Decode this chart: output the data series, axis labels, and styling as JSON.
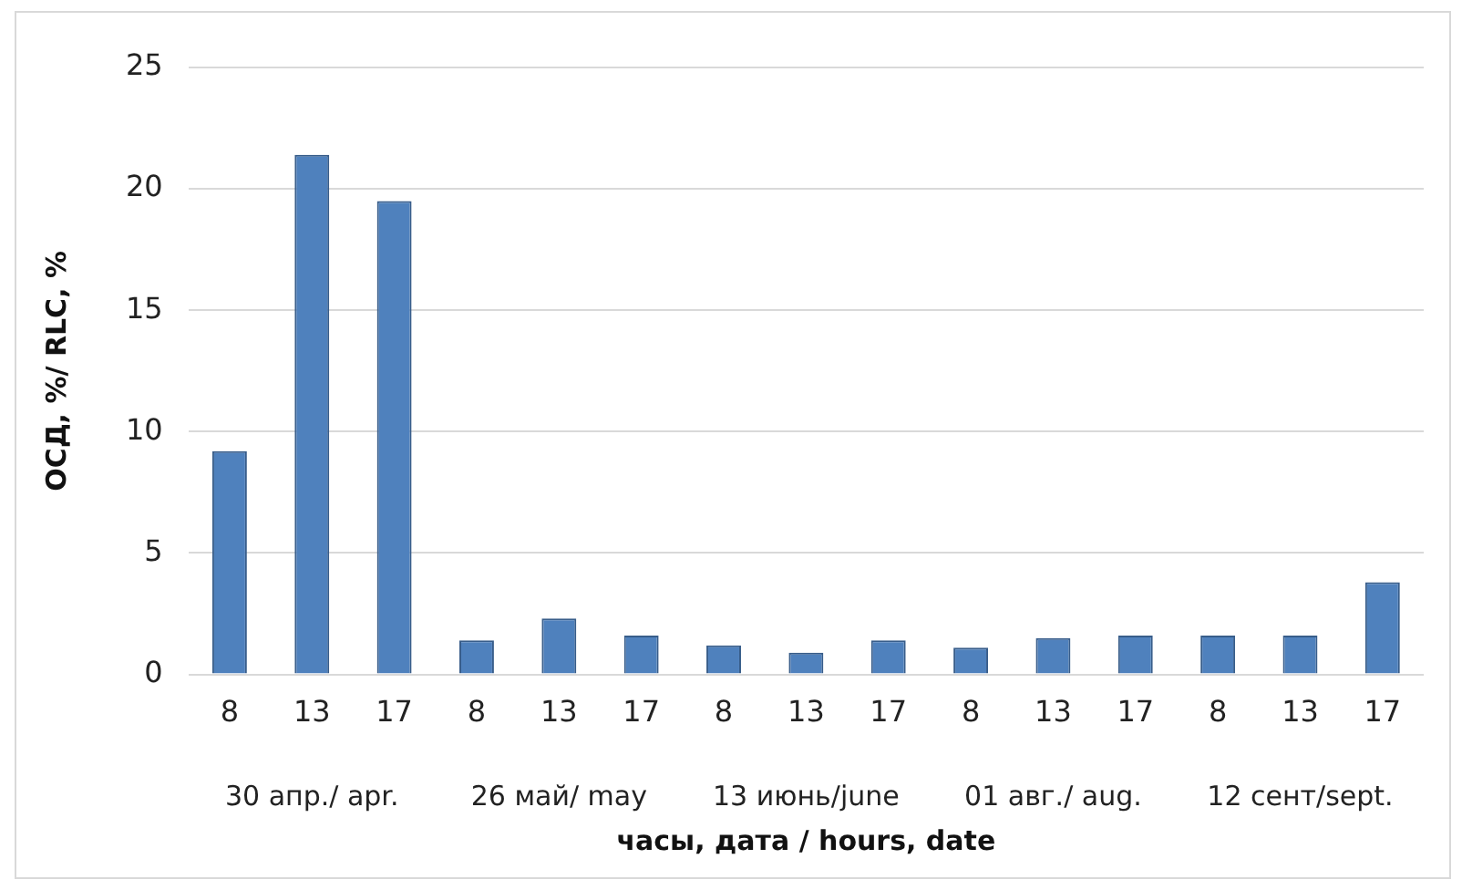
{
  "chart_data": {
    "type": "bar",
    "xlabel": "часы, дата / hours, date",
    "ylabel": "ОСД, %/ RLC, %",
    "categories": [
      "8",
      "13",
      "17",
      "8",
      "13",
      "17",
      "8",
      "13",
      "17",
      "8",
      "13",
      "17",
      "8",
      "13",
      "17"
    ],
    "values": [
      9.2,
      21.4,
      19.5,
      1.4,
      2.3,
      1.6,
      1.2,
      0.9,
      1.4,
      1.1,
      1.5,
      1.6,
      1.6,
      1.6,
      3.8
    ],
    "color": "#4f81bd",
    "ylim": [
      0,
      25
    ],
    "yticks": [
      0,
      5,
      10,
      15,
      20,
      25
    ],
    "grid": "y",
    "legend": false,
    "annotations": [
      "30 апр./ apr.",
      "26 май/ may",
      "13 июнь/june",
      "01 авг./ aug.",
      "12 сент/sept."
    ]
  }
}
